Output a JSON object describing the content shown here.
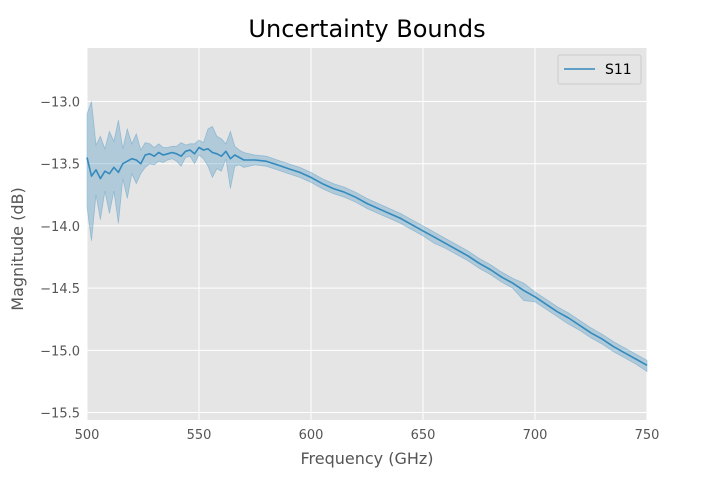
{
  "chart_data": {
    "type": "line",
    "title": "Uncertainty Bounds",
    "xlabel": "Frequency (GHz)",
    "ylabel": "Magnitude (dB)",
    "xlim": [
      500,
      750
    ],
    "ylim": [
      -15.56,
      -12.57
    ],
    "xticks": [
      500,
      550,
      600,
      650,
      700,
      750
    ],
    "xtick_labels": [
      "500",
      "550",
      "600",
      "650",
      "700",
      "750"
    ],
    "yticks": [
      -13.0,
      -13.5,
      -14.0,
      -14.5,
      -15.0,
      -15.5
    ],
    "ytick_labels": [
      "−13.0",
      "−13.5",
      "−14.0",
      "−14.5",
      "−15.0",
      "−15.5"
    ],
    "grid": true,
    "legend": {
      "position": "top-right",
      "entries": [
        "S11"
      ]
    },
    "colors": {
      "line": "#348abd",
      "band": "#348abd",
      "background": "#e5e5e5",
      "grid": "#ffffff"
    },
    "series": [
      {
        "name": "S11",
        "x": [
          500,
          502,
          504,
          506,
          508,
          510,
          512,
          514,
          516,
          518,
          520,
          522,
          524,
          526,
          528,
          530,
          532,
          534,
          536,
          538,
          540,
          542,
          544,
          546,
          548,
          550,
          552,
          554,
          556,
          558,
          560,
          562,
          564,
          566,
          568,
          570,
          575,
          580,
          585,
          590,
          595,
          600,
          605,
          610,
          615,
          620,
          625,
          630,
          635,
          640,
          645,
          650,
          655,
          660,
          665,
          670,
          675,
          680,
          685,
          690,
          695,
          700,
          705,
          710,
          715,
          720,
          725,
          730,
          735,
          740,
          745,
          750
        ],
        "y": [
          -13.45,
          -13.6,
          -13.55,
          -13.62,
          -13.56,
          -13.58,
          -13.53,
          -13.57,
          -13.5,
          -13.48,
          -13.46,
          -13.47,
          -13.5,
          -13.43,
          -13.42,
          -13.44,
          -13.41,
          -13.43,
          -13.42,
          -13.41,
          -13.42,
          -13.44,
          -13.4,
          -13.39,
          -13.42,
          -13.37,
          -13.39,
          -13.38,
          -13.41,
          -13.42,
          -13.44,
          -13.4,
          -13.46,
          -13.43,
          -13.45,
          -13.47,
          -13.47,
          -13.48,
          -13.51,
          -13.54,
          -13.57,
          -13.61,
          -13.66,
          -13.7,
          -13.73,
          -13.77,
          -13.82,
          -13.86,
          -13.9,
          -13.94,
          -13.99,
          -14.04,
          -14.09,
          -14.14,
          -14.19,
          -14.24,
          -14.3,
          -14.35,
          -14.41,
          -14.46,
          -14.52,
          -14.57,
          -14.63,
          -14.69,
          -14.74,
          -14.8,
          -14.86,
          -14.91,
          -14.97,
          -15.02,
          -15.07,
          -15.12
        ],
        "lower": [
          -13.85,
          -14.12,
          -13.75,
          -13.95,
          -13.72,
          -13.9,
          -13.72,
          -13.98,
          -13.62,
          -13.78,
          -13.58,
          -13.66,
          -13.58,
          -13.53,
          -13.5,
          -13.51,
          -13.48,
          -13.49,
          -13.47,
          -13.46,
          -13.48,
          -13.52,
          -13.45,
          -13.44,
          -13.5,
          -13.43,
          -13.46,
          -13.52,
          -13.61,
          -13.54,
          -13.56,
          -13.46,
          -13.7,
          -13.52,
          -13.51,
          -13.53,
          -13.51,
          -13.52,
          -13.55,
          -13.58,
          -13.61,
          -13.65,
          -13.7,
          -13.74,
          -13.77,
          -13.81,
          -13.86,
          -13.9,
          -13.94,
          -13.98,
          -14.03,
          -14.08,
          -14.14,
          -14.18,
          -14.23,
          -14.28,
          -14.34,
          -14.39,
          -14.45,
          -14.5,
          -14.6,
          -14.61,
          -14.67,
          -14.73,
          -14.79,
          -14.84,
          -14.9,
          -14.95,
          -15.01,
          -15.06,
          -15.11,
          -15.17
        ],
        "upper": [
          -13.1,
          -13.0,
          -13.35,
          -13.28,
          -13.38,
          -13.24,
          -13.32,
          -13.15,
          -13.38,
          -13.22,
          -13.34,
          -13.26,
          -13.39,
          -13.33,
          -13.34,
          -13.37,
          -13.34,
          -13.37,
          -13.37,
          -13.36,
          -13.36,
          -13.33,
          -13.35,
          -13.34,
          -13.34,
          -13.31,
          -13.33,
          -13.22,
          -13.2,
          -13.28,
          -13.3,
          -13.34,
          -13.24,
          -13.36,
          -13.39,
          -13.41,
          -13.43,
          -13.44,
          -13.47,
          -13.5,
          -13.53,
          -13.57,
          -13.62,
          -13.66,
          -13.69,
          -13.73,
          -13.78,
          -13.82,
          -13.86,
          -13.9,
          -13.95,
          -14.0,
          -14.05,
          -14.1,
          -14.15,
          -14.2,
          -14.26,
          -14.31,
          -14.37,
          -14.42,
          -14.46,
          -14.53,
          -14.59,
          -14.65,
          -14.7,
          -14.76,
          -14.82,
          -14.87,
          -14.93,
          -14.98,
          -15.03,
          -15.08
        ]
      }
    ]
  }
}
